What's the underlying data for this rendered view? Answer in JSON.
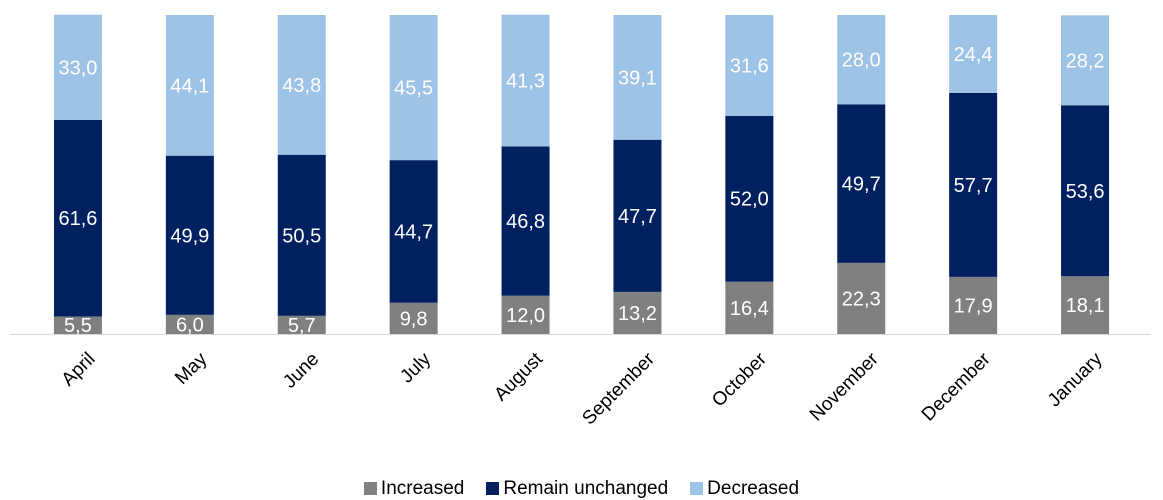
{
  "chart_data": {
    "type": "bar",
    "stacked": true,
    "categories": [
      "April",
      "May",
      "June",
      "July",
      "August",
      "September",
      "October",
      "November",
      "December",
      "January"
    ],
    "series": [
      {
        "name": "Increased",
        "color": "#808080",
        "label_color": "#ffffff",
        "values": [
          5.5,
          6.0,
          5.7,
          9.8,
          12.0,
          13.2,
          16.4,
          22.3,
          17.9,
          18.1
        ],
        "labels": [
          "5,5",
          "6,0",
          "5,7",
          "9,8",
          "12,0",
          "13,2",
          "16,4",
          "22,3",
          "17,9",
          "18,1"
        ]
      },
      {
        "name": "Remain unchanged",
        "color": "#002060",
        "label_color": "#ffffff",
        "values": [
          61.6,
          49.9,
          50.5,
          44.7,
          46.8,
          47.7,
          52.0,
          49.7,
          57.7,
          53.6
        ],
        "labels": [
          "61,6",
          "49,9",
          "50,5",
          "44,7",
          "46,8",
          "47,7",
          "52,0",
          "49,7",
          "57,7",
          "53,6"
        ]
      },
      {
        "name": "Decreased",
        "color": "#9DC3E6",
        "label_color": "#ffffff",
        "values": [
          33.0,
          44.1,
          43.8,
          45.5,
          41.3,
          39.1,
          31.6,
          28.0,
          24.4,
          28.2
        ],
        "labels": [
          "33,0",
          "44,1",
          "43,8",
          "45,5",
          "41,3",
          "39,1",
          "31,6",
          "28,0",
          "24,4",
          "28,2"
        ]
      }
    ],
    "ylim": [
      0,
      100
    ],
    "grid": false,
    "legend_position": "bottom",
    "axis_color": "#d9d9d9",
    "label_color": "#000000"
  }
}
